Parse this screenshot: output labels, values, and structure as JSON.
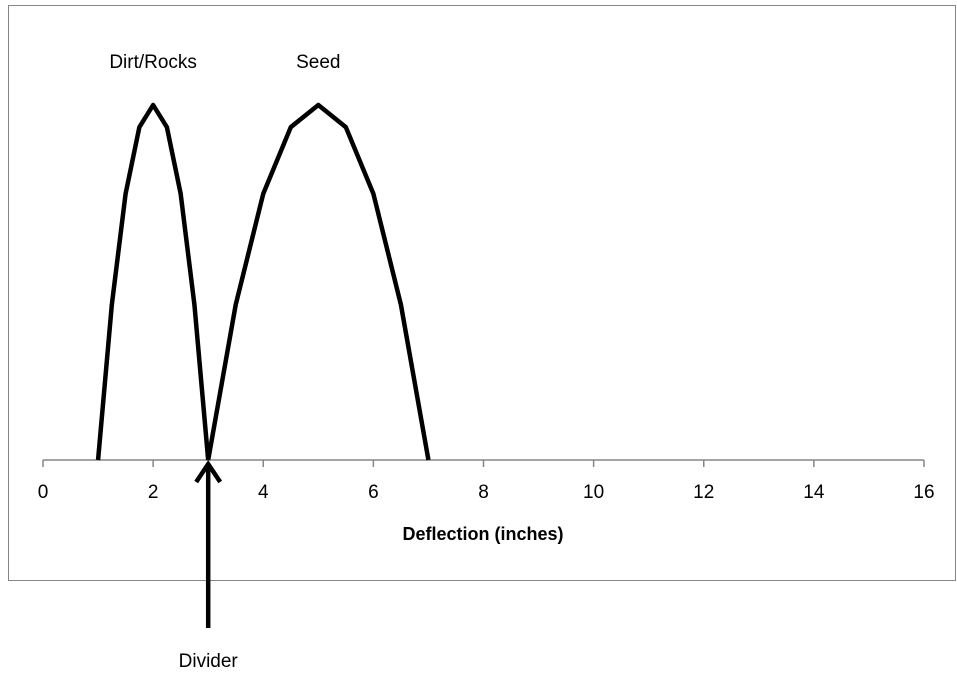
{
  "chart_data": {
    "type": "line",
    "xlabel": "Deflection (inches)",
    "xlim": [
      0,
      16
    ],
    "xticks": [
      0,
      2,
      4,
      6,
      8,
      10,
      12,
      14,
      16
    ],
    "ylim": [
      0,
      1
    ],
    "series": [
      {
        "name": "Dirt/Rocks",
        "color": "#000000",
        "x": [
          1,
          1.25,
          1.5,
          1.75,
          2,
          2.25,
          2.5,
          2.75,
          3
        ],
        "values": [
          0,
          0.4375,
          0.75,
          0.9375,
          1,
          0.9375,
          0.75,
          0.4375,
          0
        ]
      },
      {
        "name": "Seed",
        "color": "#000000",
        "x": [
          3,
          3.5,
          4,
          4.5,
          5,
          5.5,
          6,
          6.5,
          7
        ],
        "values": [
          0,
          0.4375,
          0.75,
          0.9375,
          1,
          0.9375,
          0.75,
          0.4375,
          0
        ]
      }
    ],
    "annotations": [
      {
        "text": "Dirt/Rocks",
        "x": 2
      },
      {
        "text": "Seed",
        "x": 5
      },
      {
        "text": "Divider",
        "x": 3
      }
    ]
  }
}
